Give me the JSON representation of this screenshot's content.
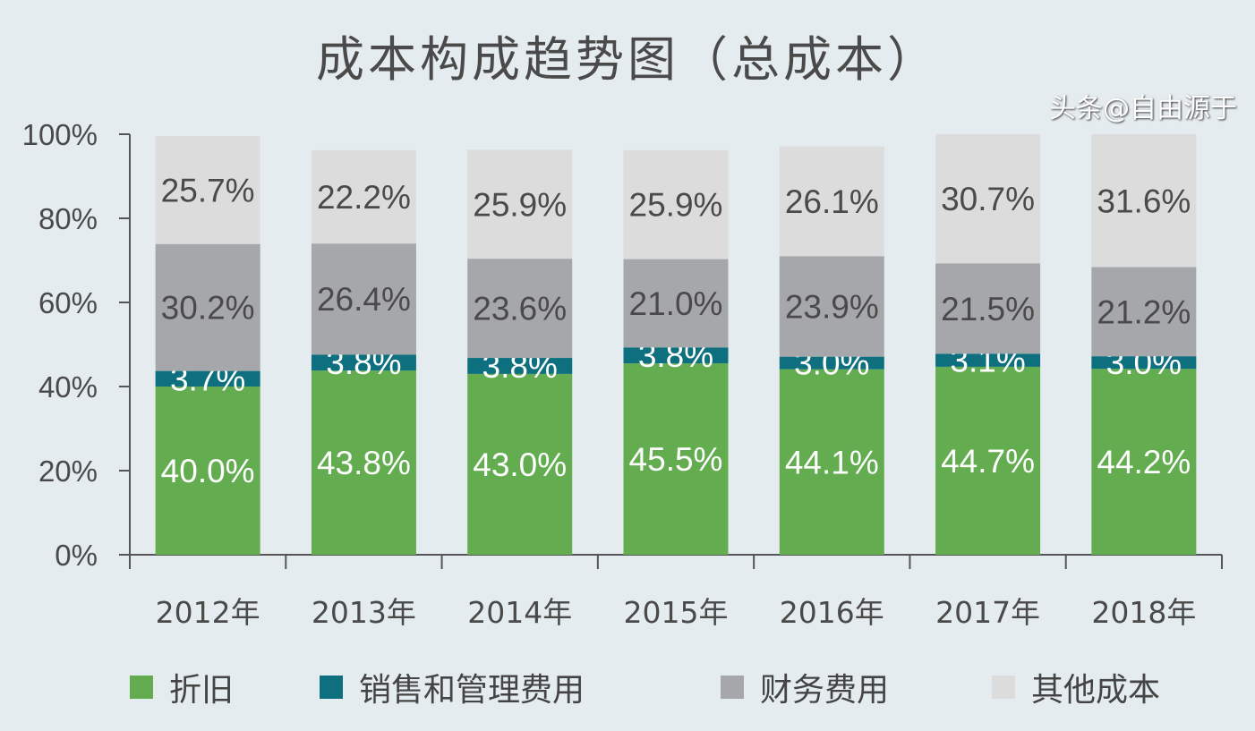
{
  "chart_data": {
    "type": "bar",
    "stacked": true,
    "title": "成本构成趋势图（总成本）",
    "xlabel": "",
    "ylabel": "",
    "ylim": [
      0,
      100
    ],
    "yticks": [
      "0%",
      "20%",
      "40%",
      "60%",
      "80%",
      "100%"
    ],
    "categories": [
      "2012年",
      "2013年",
      "2014年",
      "2015年",
      "2016年",
      "2017年",
      "2018年"
    ],
    "series": [
      {
        "name": "折旧",
        "color": "#63ad50",
        "label_color": "#ffffff",
        "values": [
          40.0,
          43.8,
          43.0,
          45.5,
          44.1,
          44.7,
          44.2
        ]
      },
      {
        "name": "销售和管理费用",
        "color": "#0e6f7e",
        "label_color": "#ffffff",
        "values": [
          3.7,
          3.8,
          3.8,
          3.8,
          3.0,
          3.1,
          3.0
        ]
      },
      {
        "name": "财务费用",
        "color": "#a6a7aa",
        "label_color": "#4a4a4a",
        "values": [
          30.2,
          26.4,
          23.6,
          21.0,
          23.9,
          21.5,
          21.2
        ]
      },
      {
        "name": "其他成本",
        "color": "#dcdcdc",
        "label_color": "#4a4a4a",
        "values": [
          25.7,
          22.2,
          25.9,
          25.9,
          26.1,
          30.7,
          31.6
        ]
      }
    ],
    "data_labels": true,
    "legend": "bottom",
    "grid": false
  },
  "watermark": "头条@自由源于"
}
